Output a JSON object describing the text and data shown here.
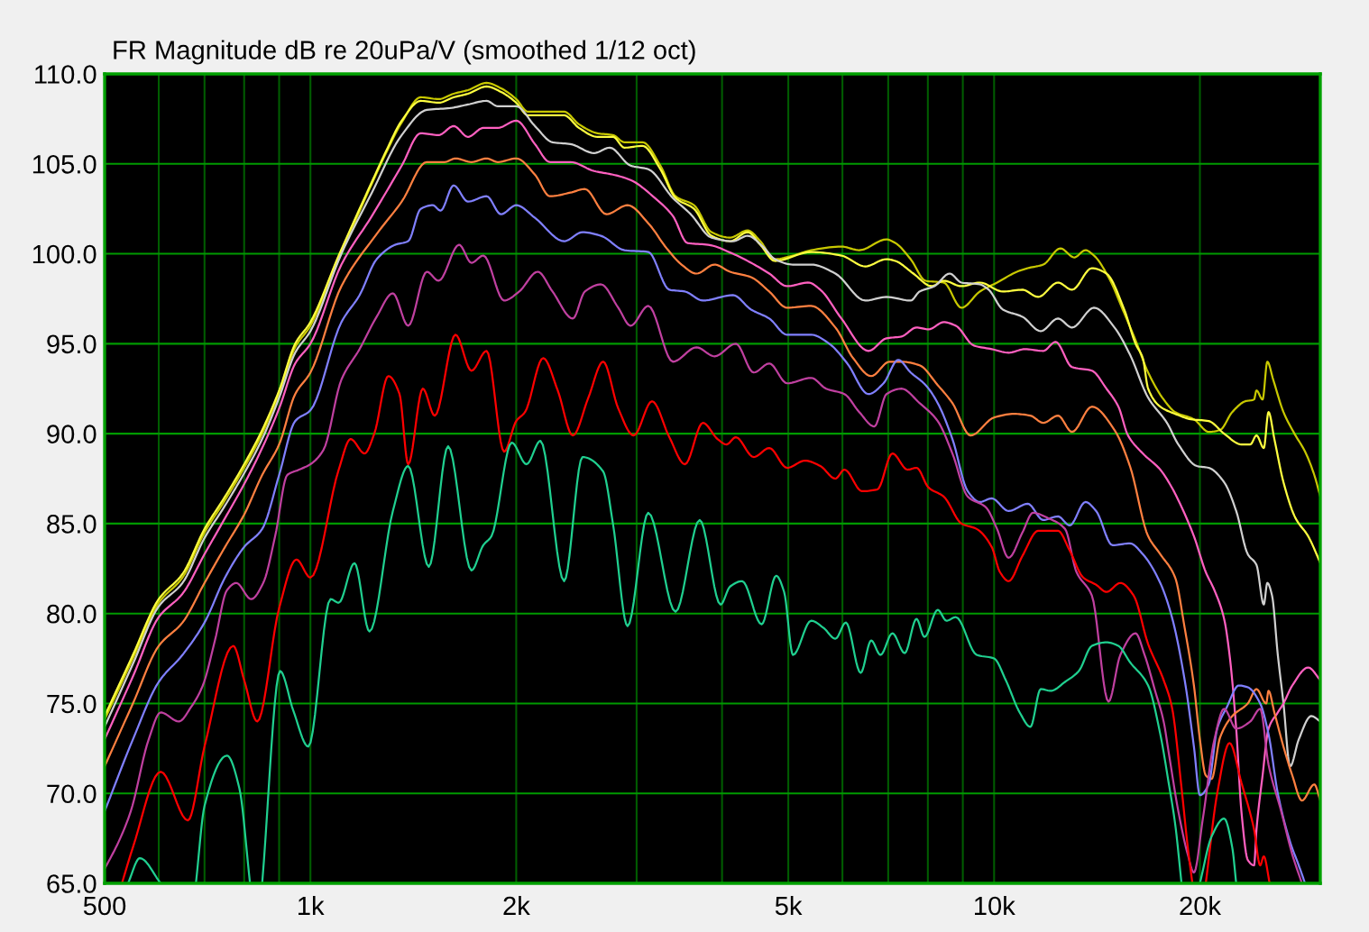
{
  "chart_data": {
    "type": "line",
    "title": "FR Magnitude dB re 20uPa/V (smoothed 1/12 oct)",
    "xlim": [
      500,
      30000
    ],
    "ylim": [
      65,
      110
    ],
    "log": "x",
    "grid": true,
    "xticks": [
      {
        "value": 500,
        "label": "500"
      },
      {
        "value": 600,
        "label": null
      },
      {
        "value": 700,
        "label": null
      },
      {
        "value": 800,
        "label": null
      },
      {
        "value": 900,
        "label": null
      },
      {
        "value": 1000,
        "label": "1k"
      },
      {
        "value": 2000,
        "label": "2k"
      },
      {
        "value": 3000,
        "label": null
      },
      {
        "value": 4000,
        "label": null
      },
      {
        "value": 5000,
        "label": "5k"
      },
      {
        "value": 6000,
        "label": null
      },
      {
        "value": 7000,
        "label": null
      },
      {
        "value": 8000,
        "label": null
      },
      {
        "value": 9000,
        "label": null
      },
      {
        "value": 10000,
        "label": "10k"
      },
      {
        "value": 20000,
        "label": "20k"
      }
    ],
    "yticks": [
      {
        "value": 65,
        "label": "65.0"
      },
      {
        "value": 70,
        "label": "70.0"
      },
      {
        "value": 75,
        "label": "75.0"
      },
      {
        "value": 80,
        "label": "80.0"
      },
      {
        "value": 85,
        "label": "85.0"
      },
      {
        "value": 90,
        "label": "90.0"
      },
      {
        "value": 95,
        "label": "95.0"
      },
      {
        "value": 100,
        "label": "100.0"
      },
      {
        "value": 105,
        "label": "105.0"
      },
      {
        "value": 110,
        "label": "110.0"
      }
    ],
    "series": [
      {
        "color": "#c8c800",
        "x": [
          500,
          550,
          600,
          650,
          700,
          750,
          800,
          850,
          900,
          950,
          1000,
          1100,
          1230,
          1290,
          1360,
          1450,
          1540,
          1620,
          1700,
          1810,
          1900,
          2000,
          2080,
          2350,
          2470,
          2630,
          2770,
          2880,
          3060,
          3250,
          3420,
          3640,
          3860,
          4110,
          4360,
          4550,
          4780,
          5080,
          5400,
          5980,
          6350,
          6960,
          7170,
          7550,
          7940,
          8440,
          8960,
          9530,
          10100,
          10800,
          11200,
          11800,
          12500,
          13100,
          13600,
          14000,
          14700,
          15500,
          16100,
          16800,
          17700,
          18400,
          19600,
          20600,
          21400,
          22300,
          23300,
          24000,
          24200,
          24700,
          25100,
          25600,
          26500,
          27500,
          28500,
          29400,
          30000
        ],
        "values": [
          74.1,
          77.5,
          80.6,
          82.0,
          84.5,
          86.3,
          88.1,
          90.0,
          92.2,
          94.8,
          96.0,
          99.7,
          103.9,
          105.6,
          107.3,
          108.7,
          108.6,
          108.9,
          109.1,
          109.5,
          109.2,
          108.6,
          107.9,
          107.9,
          107.2,
          106.7,
          106.6,
          106.2,
          106.2,
          104.9,
          103.2,
          102.7,
          101.2,
          100.9,
          101.3,
          100.7,
          99.7,
          99.9,
          100.2,
          100.4,
          100.2,
          100.8,
          100.6,
          99.7,
          98.5,
          98.4,
          97.0,
          97.9,
          98.4,
          99.0,
          99.2,
          99.4,
          100.3,
          99.8,
          100.2,
          99.9,
          98.7,
          96.7,
          95.2,
          93.4,
          91.9,
          91.2,
          90.8,
          90.1,
          90.2,
          91.2,
          91.8,
          91.9,
          92.4,
          91.9,
          94.0,
          93.0,
          91.2,
          90.0,
          89.0,
          87.7,
          86.5
        ]
      },
      {
        "color": "#ffff40",
        "x": [
          500,
          550,
          600,
          650,
          700,
          750,
          800,
          850,
          900,
          950,
          1000,
          1100,
          1230,
          1290,
          1360,
          1450,
          1540,
          1620,
          1700,
          1810,
          1900,
          2000,
          2080,
          2350,
          2470,
          2630,
          2770,
          2880,
          3060,
          3250,
          3420,
          3640,
          3860,
          4110,
          4360,
          4550,
          4780,
          5400,
          5980,
          6480,
          6960,
          7170,
          7620,
          8100,
          8440,
          8960,
          9530,
          10300,
          11000,
          11600,
          12400,
          13000,
          13900,
          14600,
          15500,
          16100,
          16500,
          16800,
          17500,
          18400,
          19400,
          20600,
          21700,
          23000,
          23700,
          24200,
          24800,
          25200,
          25700,
          26500,
          27600,
          28800,
          29700,
          30000
        ],
        "values": [
          74.3,
          77.7,
          80.8,
          82.2,
          84.7,
          86.5,
          88.3,
          90.2,
          92.4,
          95.0,
          96.2,
          99.9,
          104.0,
          105.7,
          107.4,
          108.5,
          108.4,
          108.7,
          108.9,
          109.3,
          109.0,
          108.4,
          107.7,
          107.7,
          107.0,
          106.5,
          106.5,
          105.9,
          106.0,
          104.7,
          103.1,
          102.5,
          101.0,
          100.7,
          101.2,
          100.5,
          99.6,
          100.1,
          99.9,
          99.3,
          99.7,
          99.6,
          98.9,
          98.2,
          98.5,
          98.2,
          98.4,
          97.9,
          98.0,
          97.6,
          98.4,
          98.0,
          99.2,
          98.9,
          96.9,
          95.0,
          94.2,
          92.5,
          91.5,
          91.1,
          90.8,
          90.7,
          90.0,
          89.4,
          89.4,
          89.9,
          89.2,
          91.2,
          89.7,
          87.3,
          85.3,
          84.3,
          83.2,
          82.8
        ]
      },
      {
        "color": "#d0d0d0",
        "x": [
          500,
          550,
          600,
          650,
          700,
          750,
          800,
          850,
          900,
          950,
          1000,
          1110,
          1230,
          1360,
          1480,
          1600,
          1700,
          1810,
          1880,
          2000,
          2130,
          2260,
          2400,
          2600,
          2740,
          2940,
          3120,
          3390,
          3600,
          3860,
          4150,
          4360,
          4590,
          4780,
          5080,
          5400,
          5860,
          6480,
          6960,
          7550,
          7780,
          8180,
          8610,
          8960,
          9530,
          9820,
          10300,
          11000,
          11700,
          12400,
          13000,
          14000,
          15000,
          15800,
          16800,
          17900,
          18600,
          19800,
          20600,
          21700,
          22600,
          23500,
          24200,
          24800,
          25100,
          25500,
          26000,
          26500,
          27100,
          27900,
          29100,
          30000
        ],
        "values": [
          73.7,
          77.2,
          80.4,
          81.7,
          84.2,
          86.0,
          87.8,
          89.7,
          92.0,
          94.5,
          95.7,
          100.0,
          103.4,
          106.6,
          108.0,
          108.1,
          108.3,
          108.5,
          108.2,
          108.2,
          107.1,
          106.2,
          106.1,
          105.6,
          105.9,
          104.9,
          104.7,
          103.1,
          102.2,
          100.9,
          100.7,
          101.0,
          100.4,
          99.7,
          99.4,
          99.4,
          98.9,
          97.4,
          97.6,
          97.4,
          97.9,
          98.2,
          98.9,
          98.4,
          98.3,
          98.0,
          96.9,
          96.5,
          95.7,
          96.4,
          95.9,
          97.0,
          95.9,
          94.4,
          92.0,
          90.6,
          89.4,
          88.2,
          88.1,
          87.3,
          85.7,
          83.3,
          82.7,
          80.5,
          81.7,
          81.0,
          77.7,
          75.0,
          71.5,
          73.0,
          74.3,
          74.0
        ]
      },
      {
        "color": "#ff60c0",
        "x": [
          500,
          550,
          600,
          650,
          700,
          750,
          800,
          850,
          900,
          950,
          1000,
          1110,
          1230,
          1360,
          1450,
          1540,
          1620,
          1700,
          1790,
          1880,
          2000,
          2130,
          2240,
          2400,
          2600,
          2770,
          2940,
          3190,
          3390,
          3560,
          3820,
          4150,
          4410,
          4690,
          4980,
          5350,
          5570,
          5980,
          6550,
          6960,
          7320,
          7700,
          8020,
          8440,
          8790,
          9340,
          9920,
          10500,
          11100,
          11800,
          12300,
          13000,
          13900,
          14600,
          15200,
          15700,
          16500,
          17500,
          18200,
          18600,
          19600,
          20400,
          21000,
          21700,
          22100,
          22600,
          23000,
          23500,
          24000,
          24200,
          24700,
          25200,
          26000,
          26500,
          27300,
          28800,
          30000
        ],
        "values": [
          73.0,
          76.5,
          79.8,
          81.1,
          83.3,
          85.3,
          87.2,
          89.2,
          91.4,
          93.9,
          95.0,
          99.4,
          102.1,
          104.9,
          106.7,
          106.6,
          107.1,
          106.5,
          107.0,
          107.0,
          107.4,
          106.1,
          105.1,
          105.1,
          104.6,
          104.4,
          104.1,
          103.1,
          102.1,
          100.6,
          100.5,
          100.0,
          99.5,
          98.9,
          98.2,
          98.4,
          98.0,
          96.4,
          94.6,
          95.3,
          95.4,
          95.9,
          95.8,
          96.2,
          96.0,
          94.9,
          94.7,
          94.5,
          94.7,
          94.6,
          95.1,
          93.7,
          93.5,
          92.5,
          91.5,
          89.9,
          88.9,
          88.0,
          87.0,
          86.3,
          84.3,
          82.3,
          81.3,
          79.7,
          77.7,
          73.6,
          69.0,
          66.3,
          66.0,
          68.0,
          71.0,
          73.6,
          74.5,
          75.0,
          76.0,
          77.0,
          76.3
        ]
      },
      {
        "color": "#ff8040",
        "x": [
          500,
          550,
          600,
          650,
          700,
          750,
          800,
          850,
          900,
          950,
          1000,
          1110,
          1250,
          1360,
          1480,
          1570,
          1630,
          1720,
          1810,
          1880,
          2000,
          2130,
          2240,
          2400,
          2520,
          2710,
          2910,
          3120,
          3320,
          3490,
          3670,
          3900,
          4110,
          4410,
          4690,
          4980,
          5400,
          5860,
          6220,
          6610,
          7030,
          7320,
          7780,
          8270,
          8690,
          9240,
          10000,
          10700,
          11300,
          11800,
          12400,
          13000,
          13900,
          15000,
          15800,
          16800,
          17500,
          18400,
          19000,
          19600,
          20000,
          20400,
          20800,
          21400,
          22300,
          23500,
          24200,
          25000,
          25200,
          25700,
          26500,
          27300,
          28200,
          29400,
          30000
        ],
        "values": [
          71.5,
          75.0,
          78.2,
          79.5,
          81.7,
          83.7,
          85.5,
          87.7,
          89.4,
          92.2,
          93.4,
          98.2,
          101.1,
          102.9,
          105.1,
          105.1,
          105.3,
          105.1,
          105.3,
          105.1,
          105.3,
          104.4,
          103.2,
          103.4,
          103.6,
          102.2,
          102.7,
          101.7,
          100.3,
          99.4,
          98.9,
          99.4,
          99.0,
          98.7,
          97.9,
          97.0,
          97.1,
          95.9,
          94.2,
          93.2,
          94.0,
          94.0,
          93.8,
          92.7,
          91.7,
          89.9,
          90.9,
          91.1,
          91.0,
          90.6,
          91.0,
          90.1,
          91.5,
          90.2,
          88.2,
          84.3,
          83.3,
          82.0,
          79.2,
          76.0,
          73.0,
          71.0,
          70.8,
          73.1,
          74.3,
          75.0,
          75.8,
          75.0,
          75.7,
          74.5,
          72.6,
          71.0,
          69.6,
          70.5,
          69.6
        ]
      },
      {
        "color": "#8080ff",
        "x": [
          500,
          550,
          600,
          650,
          700,
          750,
          800,
          850,
          900,
          950,
          1000,
          1110,
          1180,
          1250,
          1330,
          1390,
          1450,
          1510,
          1550,
          1620,
          1700,
          1810,
          1900,
          2000,
          2130,
          2350,
          2500,
          2660,
          2880,
          3120,
          3350,
          3530,
          3750,
          4150,
          4410,
          4690,
          4980,
          5400,
          5740,
          6100,
          6550,
          6890,
          7240,
          7550,
          7940,
          8270,
          8690,
          9150,
          9530,
          9920,
          10500,
          11200,
          11800,
          12400,
          12900,
          13600,
          14100,
          14900,
          15800,
          16500,
          17500,
          18200,
          19000,
          19600,
          20000,
          20600,
          21200,
          21900,
          22800,
          23500,
          24500,
          25200,
          26000,
          27100,
          27900,
          28500
        ],
        "values": [
          69.0,
          73.0,
          76.2,
          77.7,
          79.5,
          82.0,
          83.7,
          84.7,
          87.7,
          90.7,
          91.3,
          96.2,
          97.7,
          99.7,
          100.5,
          100.7,
          102.5,
          102.7,
          102.4,
          103.8,
          102.9,
          103.2,
          102.2,
          102.7,
          102.0,
          100.7,
          101.2,
          101.0,
          100.2,
          100.1,
          98.0,
          97.9,
          97.4,
          97.7,
          96.9,
          96.4,
          95.5,
          95.5,
          95.0,
          93.9,
          92.2,
          92.8,
          94.1,
          93.4,
          92.7,
          91.7,
          89.7,
          86.8,
          86.2,
          86.4,
          85.7,
          86.1,
          85.2,
          85.4,
          84.9,
          86.2,
          85.7,
          83.8,
          83.9,
          83.3,
          81.7,
          79.8,
          76.3,
          72.6,
          69.9,
          70.5,
          73.6,
          74.8,
          76.0,
          75.9,
          75.0,
          73.3,
          70.0,
          67.3,
          66.0,
          65.0
        ]
      },
      {
        "color": "#c040a0",
        "x": [
          500,
          524,
          546,
          580,
          604,
          642,
          669,
          696,
          725,
          755,
          779,
          819,
          853,
          888,
          925,
          963,
          1000,
          1045,
          1110,
          1180,
          1250,
          1320,
          1390,
          1480,
          1540,
          1650,
          1720,
          1790,
          1920,
          2020,
          2150,
          2260,
          2420,
          2520,
          2660,
          2820,
          2940,
          3120,
          3390,
          3670,
          3900,
          4190,
          4450,
          4690,
          4980,
          5400,
          5680,
          6040,
          6350,
          6680,
          6960,
          7320,
          7780,
          8270,
          8690,
          9150,
          9730,
          10100,
          10500,
          11000,
          11400,
          12000,
          12700,
          13200,
          13900,
          14700,
          15300,
          16100,
          16600,
          17200,
          17700,
          18000,
          18600,
          19200,
          19600,
          20200,
          21000,
          21700,
          22600,
          23700,
          24500,
          25200,
          26300,
          27300,
          28200
        ],
        "values": [
          65.8,
          67.3,
          69.0,
          73.0,
          74.5,
          74.0,
          74.8,
          76.0,
          78.5,
          81.3,
          81.7,
          80.8,
          81.7,
          84.3,
          87.7,
          88.0,
          88.3,
          89.1,
          93.0,
          94.7,
          96.5,
          97.8,
          96.0,
          99.0,
          98.5,
          100.5,
          99.5,
          99.9,
          97.4,
          97.9,
          99.0,
          97.9,
          96.4,
          97.9,
          98.3,
          97.0,
          96.0,
          97.1,
          94.0,
          94.8,
          94.3,
          95.0,
          93.4,
          93.9,
          92.8,
          93.1,
          92.5,
          92.2,
          91.2,
          90.4,
          92.2,
          92.5,
          91.7,
          90.7,
          88.9,
          86.5,
          85.9,
          84.7,
          83.1,
          84.5,
          85.6,
          85.3,
          84.7,
          82.3,
          81.0,
          75.1,
          77.7,
          78.9,
          77.7,
          75.7,
          74.0,
          72.3,
          69.0,
          66.6,
          65.6,
          68.6,
          73.0,
          74.7,
          73.6,
          74.0,
          74.7,
          71.6,
          69.0,
          66.6,
          65.0
        ]
      },
      {
        "color": "#ff0000",
        "x": [
          530,
          550,
          604,
          662,
          700,
          771,
          800,
          836,
          900,
          954,
          1000,
          1100,
          1145,
          1200,
          1240,
          1300,
          1350,
          1390,
          1460,
          1520,
          1630,
          1720,
          1810,
          1920,
          2000,
          2060,
          2190,
          2300,
          2420,
          2550,
          2680,
          2820,
          2970,
          3160,
          3350,
          3530,
          3750,
          3940,
          4060,
          4190,
          4450,
          4690,
          4980,
          5290,
          5570,
          5860,
          6040,
          6410,
          6750,
          7100,
          7470,
          7700,
          8020,
          8440,
          8960,
          9430,
          9920,
          10200,
          10500,
          11000,
          11600,
          12400,
          12900,
          13500,
          14100,
          14600,
          15300,
          16000,
          16800,
          17700,
          18200,
          18800,
          19200,
          19500,
          19900,
          20400,
          21200,
          22100,
          23000,
          24000,
          24500,
          24800,
          25300
        ],
        "values": [
          65.0,
          67.0,
          71.2,
          68.5,
          72.6,
          78.2,
          76.3,
          74.0,
          80.3,
          83.0,
          82.0,
          88.0,
          89.7,
          88.9,
          90.0,
          93.2,
          92.2,
          88.3,
          92.5,
          91.0,
          95.5,
          93.5,
          94.6,
          89.0,
          90.7,
          91.2,
          94.2,
          92.4,
          89.9,
          92.0,
          94.0,
          91.4,
          89.9,
          91.8,
          89.8,
          88.3,
          90.6,
          89.7,
          89.4,
          89.8,
          88.7,
          89.2,
          88.1,
          88.5,
          88.2,
          87.5,
          88.0,
          86.8,
          86.9,
          88.9,
          88.0,
          88.1,
          87.0,
          86.5,
          85.0,
          84.7,
          83.7,
          82.3,
          81.8,
          83.2,
          84.6,
          84.6,
          83.5,
          82.0,
          81.6,
          81.2,
          81.7,
          81.0,
          78.3,
          76.3,
          74.8,
          70.3,
          67.0,
          65.0,
          null,
          65.0,
          70.0,
          72.8,
          70.6,
          68.0,
          66.0,
          66.5,
          65.0
        ]
      },
      {
        "color": "#20d090",
        "x": [
          541,
          563,
          604,
          640,
          680,
          700,
          755,
          787,
          816,
          833,
          850,
          903,
          944,
          993,
          1070,
          1100,
          1160,
          1220,
          1320,
          1390,
          1490,
          1590,
          1720,
          1790,
          1840,
          1970,
          2070,
          2170,
          2350,
          2500,
          2680,
          2770,
          2910,
          3120,
          3420,
          3710,
          3980,
          4110,
          4280,
          4570,
          4800,
          4930,
          5080,
          5400,
          5630,
          5860,
          6070,
          6380,
          6610,
          6820,
          7100,
          7400,
          7700,
          7910,
          8270,
          8520,
          8790,
          9430,
          10000,
          10400,
          10900,
          11300,
          11700,
          12100,
          12700,
          13300,
          13900,
          14600,
          15200,
          15800,
          16800,
          17500,
          18000,
          18400,
          18800,
          19400,
          20000,
          20800,
          21700,
          22300,
          22600
        ],
        "values": [
          65.0,
          66.4,
          65.0,
          null,
          65.0,
          69.3,
          72.1,
          70.3,
          65.0,
          null,
          65.0,
          76.8,
          74.6,
          72.6,
          80.8,
          80.6,
          82.8,
          79.0,
          85.7,
          88.2,
          82.6,
          89.3,
          82.4,
          83.8,
          84.3,
          89.5,
          88.3,
          89.6,
          81.8,
          88.7,
          87.9,
          85.0,
          79.3,
          85.6,
          80.1,
          85.2,
          80.5,
          81.5,
          81.8,
          79.4,
          82.1,
          81.2,
          77.7,
          79.6,
          79.2,
          78.6,
          79.5,
          76.7,
          78.5,
          77.7,
          78.9,
          77.8,
          79.7,
          78.7,
          80.2,
          79.6,
          79.8,
          77.7,
          77.5,
          76.3,
          74.5,
          73.7,
          75.8,
          75.7,
          76.2,
          76.8,
          78.2,
          78.4,
          78.2,
          77.3,
          76.0,
          73.3,
          70.6,
          68.3,
          65.0,
          null,
          65.0,
          67.6,
          68.6,
          67.0,
          65.0
        ]
      }
    ]
  }
}
